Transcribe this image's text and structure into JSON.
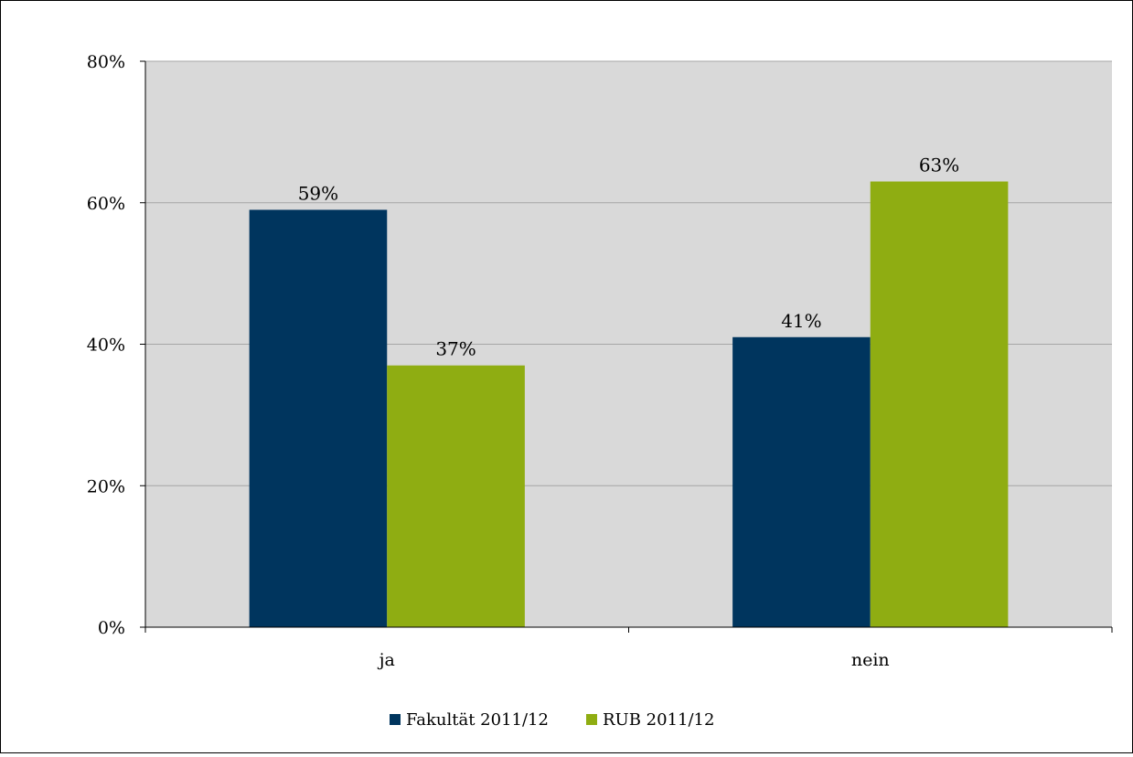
{
  "chart_data": {
    "type": "bar",
    "categories": [
      "ja",
      "nein"
    ],
    "series": [
      {
        "name": "Fakultät 2011/12",
        "values": [
          59,
          41
        ],
        "labels": [
          "59%",
          "41%"
        ],
        "color": "#00355e"
      },
      {
        "name": "RUB 2011/12",
        "values": [
          37,
          63
        ],
        "labels": [
          "37%",
          "63%"
        ],
        "color": "#8fad12"
      }
    ],
    "ylim": [
      0,
      80
    ],
    "yticks": [
      0,
      20,
      40,
      60,
      80
    ],
    "ytick_labels": [
      "0%",
      "20%",
      "40%",
      "60%",
      "80%"
    ],
    "grid": true,
    "plot_background": "#d9d9d9",
    "gridline_color": "#a6a6a6",
    "legend_position": "bottom"
  }
}
